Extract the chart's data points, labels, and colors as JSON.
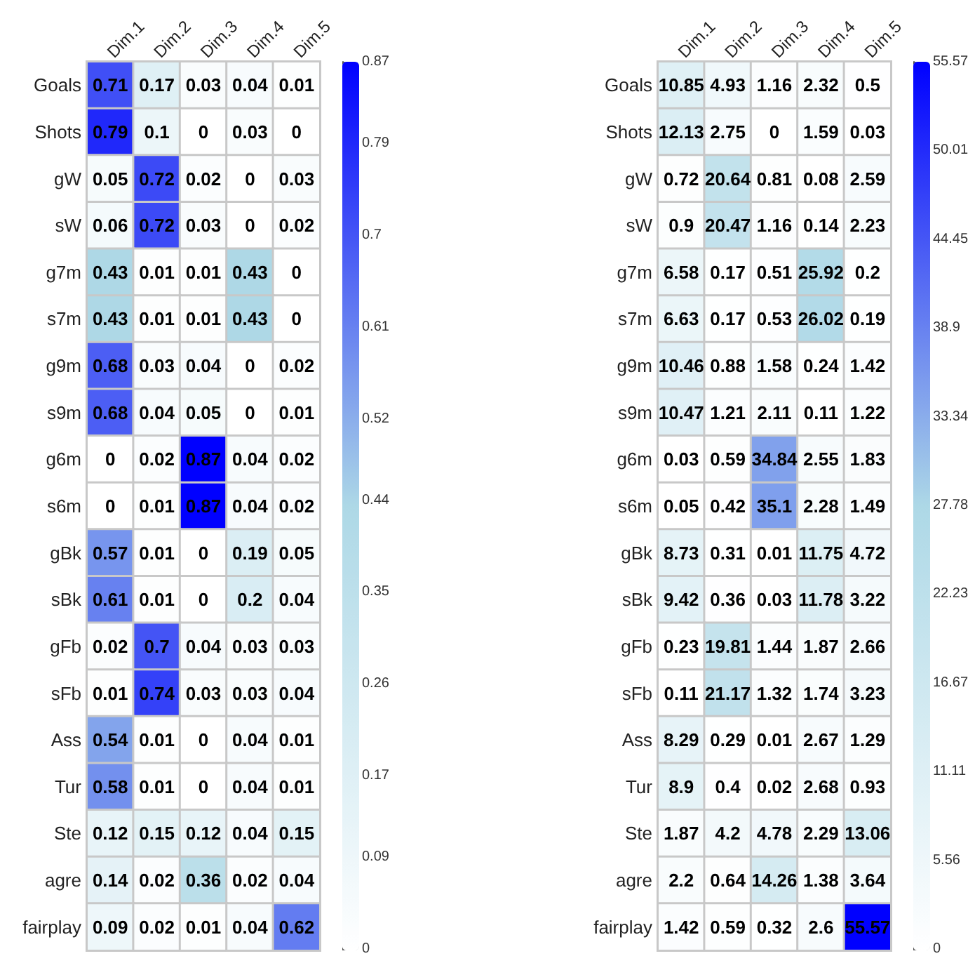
{
  "chart_data": [
    {
      "type": "heatmap",
      "categories": [
        "Dim.1",
        "Dim.2",
        "Dim.3",
        "Dim.4",
        "Dim.5"
      ],
      "y_categories": [
        "Goals",
        "Shots",
        "gW",
        "sW",
        "g7m",
        "s7m",
        "g9m",
        "s9m",
        "g6m",
        "s6m",
        "gBk",
        "sBk",
        "gFb",
        "sFb",
        "Ass",
        "Tur",
        "Ste",
        "agre",
        "fairplay"
      ],
      "cells": [
        [
          0.71,
          0.17,
          0.03,
          0.04,
          0.01
        ],
        [
          0.79,
          0.1,
          0,
          0.03,
          0
        ],
        [
          0.05,
          0.72,
          0.02,
          0,
          0.03
        ],
        [
          0.06,
          0.72,
          0.03,
          0,
          0.02
        ],
        [
          0.43,
          0.01,
          0.01,
          0.43,
          0
        ],
        [
          0.43,
          0.01,
          0.01,
          0.43,
          0
        ],
        [
          0.68,
          0.03,
          0.04,
          0,
          0.02
        ],
        [
          0.68,
          0.04,
          0.05,
          0,
          0.01
        ],
        [
          0,
          0.02,
          0.87,
          0.04,
          0.02
        ],
        [
          0,
          0.01,
          0.87,
          0.04,
          0.02
        ],
        [
          0.57,
          0.01,
          0,
          0.19,
          0.05
        ],
        [
          0.61,
          0.01,
          0,
          0.2,
          0.04
        ],
        [
          0.02,
          0.7,
          0.04,
          0.03,
          0.03
        ],
        [
          0.01,
          0.74,
          0.03,
          0.03,
          0.04
        ],
        [
          0.54,
          0.01,
          0,
          0.04,
          0.01
        ],
        [
          0.58,
          0.01,
          0,
          0.04,
          0.01
        ],
        [
          0.12,
          0.15,
          0.12,
          0.04,
          0.15
        ],
        [
          0.14,
          0.02,
          0.36,
          0.02,
          0.04
        ],
        [
          0.09,
          0.02,
          0.01,
          0.04,
          0.62
        ]
      ],
      "clim": [
        0,
        0.87
      ],
      "cticks": [
        0,
        0.09,
        0.17,
        0.26,
        0.35,
        0.44,
        0.52,
        0.61,
        0.7,
        0.79,
        0.87
      ],
      "colors": [
        "#ffffff",
        "#add8e6",
        "#0000ff"
      ],
      "data_labels": true
    },
    {
      "type": "heatmap",
      "categories": [
        "Dim.1",
        "Dim.2",
        "Dim.3",
        "Dim.4",
        "Dim.5"
      ],
      "y_categories": [
        "Goals",
        "Shots",
        "gW",
        "sW",
        "g7m",
        "s7m",
        "g9m",
        "s9m",
        "g6m",
        "s6m",
        "gBk",
        "sBk",
        "gFb",
        "sFb",
        "Ass",
        "Tur",
        "Ste",
        "agre",
        "fairplay"
      ],
      "cells": [
        [
          10.85,
          4.93,
          1.16,
          2.32,
          0.5
        ],
        [
          12.13,
          2.75,
          0,
          1.59,
          0.03
        ],
        [
          0.72,
          20.64,
          0.81,
          0.08,
          2.59
        ],
        [
          0.9,
          20.47,
          1.16,
          0.14,
          2.23
        ],
        [
          6.58,
          0.17,
          0.51,
          25.92,
          0.2
        ],
        [
          6.63,
          0.17,
          0.53,
          26.02,
          0.19
        ],
        [
          10.46,
          0.88,
          1.58,
          0.24,
          1.42
        ],
        [
          10.47,
          1.21,
          2.11,
          0.11,
          1.22
        ],
        [
          0.03,
          0.59,
          34.84,
          2.55,
          1.83
        ],
        [
          0.05,
          0.42,
          35.1,
          2.28,
          1.49
        ],
        [
          8.73,
          0.31,
          0.01,
          11.75,
          4.72
        ],
        [
          9.42,
          0.36,
          0.03,
          11.78,
          3.22
        ],
        [
          0.23,
          19.81,
          1.44,
          1.87,
          2.66
        ],
        [
          0.11,
          21.17,
          1.32,
          1.74,
          3.23
        ],
        [
          8.29,
          0.29,
          0.01,
          2.67,
          1.29
        ],
        [
          8.9,
          0.4,
          0.02,
          2.68,
          0.93
        ],
        [
          1.87,
          4.2,
          4.78,
          2.29,
          13.06
        ],
        [
          2.2,
          0.64,
          14.26,
          1.38,
          3.64
        ],
        [
          1.42,
          0.59,
          0.32,
          2.6,
          55.57
        ]
      ],
      "clim": [
        0,
        55.57
      ],
      "cticks": [
        0,
        5.56,
        11.11,
        16.67,
        22.23,
        27.78,
        33.34,
        38.9,
        44.45,
        50.01,
        55.57
      ],
      "colors": [
        "#ffffff",
        "#add8e6",
        "#0000ff"
      ],
      "data_labels": true
    }
  ]
}
